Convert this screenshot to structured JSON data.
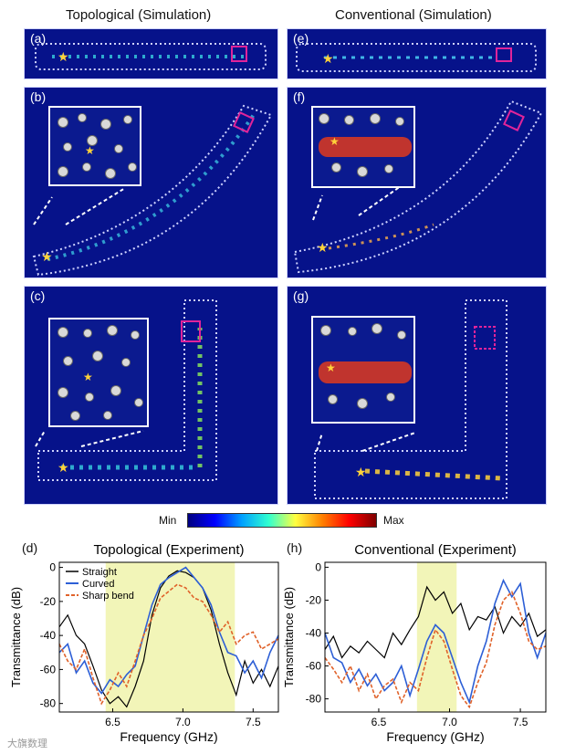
{
  "columns": {
    "left_title": "Topological (Simulation)",
    "right_title": "Conventional (Simulation)"
  },
  "panels": {
    "a": "(a)",
    "b": "(b)",
    "c": "(c)",
    "d": "(d)",
    "e": "(e)",
    "f": "(f)",
    "g": "(g)",
    "h": "(h)"
  },
  "colorbar": {
    "min_label": "Min",
    "max_label": "Max"
  },
  "watermark": "大旗数理",
  "colors": {
    "background_field": "#06128a",
    "lattice": "#cfd3ff",
    "marker_square": "#e0249a",
    "source_star": "#ffd23a",
    "shade": "#f2f5b8",
    "straight": "#000000",
    "curved": "#2d5fd6",
    "sharp": "#e0622a"
  },
  "chart_data": [
    {
      "type": "line",
      "title": "Topological (Experiment)",
      "xlabel": "Frequency (GHz)",
      "ylabel": "Transmittance (dB)",
      "xlim": [
        6.12,
        7.68
      ],
      "ylim": [
        -85,
        3
      ],
      "xticks": [
        6.5,
        7.0,
        7.5
      ],
      "yticks": [
        0,
        -20,
        -40,
        -60,
        -80
      ],
      "shade": [
        6.45,
        7.37
      ],
      "legend": [
        "Straight",
        "Curved",
        "Sharp bend"
      ],
      "series": [
        {
          "name": "Straight",
          "style": "solid",
          "color": "#000000",
          "x": [
            6.12,
            6.18,
            6.24,
            6.3,
            6.36,
            6.42,
            6.48,
            6.54,
            6.6,
            6.66,
            6.72,
            6.78,
            6.84,
            6.9,
            6.96,
            7.02,
            7.08,
            7.14,
            7.2,
            7.26,
            7.32,
            7.38,
            7.44,
            7.5,
            7.56,
            7.62,
            7.68
          ],
          "y": [
            -35,
            -28,
            -40,
            -45,
            -58,
            -72,
            -80,
            -76,
            -82,
            -70,
            -55,
            -28,
            -12,
            -5,
            -2,
            -3,
            -6,
            -12,
            -25,
            -45,
            -62,
            -75,
            -55,
            -68,
            -60,
            -70,
            -58
          ]
        },
        {
          "name": "Curved",
          "style": "solid",
          "color": "#2d5fd6",
          "x": [
            6.12,
            6.18,
            6.24,
            6.3,
            6.36,
            6.42,
            6.48,
            6.54,
            6.6,
            6.66,
            6.72,
            6.78,
            6.84,
            6.9,
            6.96,
            7.02,
            7.08,
            7.14,
            7.2,
            7.26,
            7.32,
            7.38,
            7.44,
            7.5,
            7.56,
            7.62,
            7.68
          ],
          "y": [
            -50,
            -45,
            -62,
            -55,
            -68,
            -74,
            -66,
            -70,
            -63,
            -58,
            -40,
            -22,
            -10,
            -6,
            -3,
            0,
            -6,
            -12,
            -22,
            -38,
            -50,
            -52,
            -62,
            -55,
            -65,
            -50,
            -40
          ]
        },
        {
          "name": "Sharp bend",
          "style": "dashed",
          "color": "#e0622a",
          "x": [
            6.12,
            6.18,
            6.24,
            6.3,
            6.36,
            6.42,
            6.48,
            6.54,
            6.6,
            6.66,
            6.72,
            6.78,
            6.84,
            6.9,
            6.96,
            7.02,
            7.08,
            7.14,
            7.2,
            7.26,
            7.32,
            7.38,
            7.44,
            7.5,
            7.56,
            7.62,
            7.68
          ],
          "y": [
            -45,
            -55,
            -60,
            -48,
            -65,
            -80,
            -72,
            -62,
            -70,
            -55,
            -40,
            -30,
            -18,
            -14,
            -10,
            -12,
            -18,
            -20,
            -28,
            -38,
            -32,
            -45,
            -40,
            -38,
            -48,
            -45,
            -42
          ]
        }
      ]
    },
    {
      "type": "line",
      "title": "Conventional (Experiment)",
      "xlabel": "Frequency (GHz)",
      "ylabel": "Transmittance (dB)",
      "xlim": [
        6.12,
        7.68
      ],
      "ylim": [
        -88,
        3
      ],
      "xticks": [
        6.5,
        7.0,
        7.5
      ],
      "yticks": [
        0,
        -20,
        -40,
        -60,
        -80
      ],
      "shade": [
        6.77,
        7.05
      ],
      "series": [
        {
          "name": "Straight",
          "style": "solid",
          "color": "#000000",
          "x": [
            6.12,
            6.18,
            6.24,
            6.3,
            6.36,
            6.42,
            6.48,
            6.54,
            6.6,
            6.66,
            6.72,
            6.78,
            6.84,
            6.9,
            6.96,
            7.02,
            7.08,
            7.14,
            7.2,
            7.26,
            7.32,
            7.38,
            7.44,
            7.5,
            7.56,
            7.62,
            7.68
          ],
          "y": [
            -50,
            -42,
            -55,
            -48,
            -52,
            -45,
            -50,
            -55,
            -40,
            -47,
            -38,
            -30,
            -12,
            -20,
            -15,
            -28,
            -22,
            -38,
            -30,
            -32,
            -24,
            -40,
            -30,
            -36,
            -28,
            -42,
            -38
          ]
        },
        {
          "name": "Curved",
          "style": "solid",
          "color": "#2d5fd6",
          "x": [
            6.12,
            6.18,
            6.24,
            6.3,
            6.36,
            6.42,
            6.48,
            6.54,
            6.6,
            6.66,
            6.72,
            6.78,
            6.84,
            6.9,
            6.96,
            7.02,
            7.08,
            7.14,
            7.2,
            7.26,
            7.32,
            7.38,
            7.44,
            7.5,
            7.56,
            7.62,
            7.68
          ],
          "y": [
            -40,
            -55,
            -58,
            -70,
            -62,
            -72,
            -65,
            -75,
            -70,
            -60,
            -78,
            -62,
            -45,
            -35,
            -40,
            -55,
            -70,
            -82,
            -60,
            -45,
            -22,
            -8,
            -18,
            -10,
            -40,
            -55,
            -40
          ]
        },
        {
          "name": "Sharp bend",
          "style": "dashed",
          "color": "#e0622a",
          "x": [
            6.12,
            6.18,
            6.24,
            6.3,
            6.36,
            6.42,
            6.48,
            6.54,
            6.6,
            6.66,
            6.72,
            6.78,
            6.84,
            6.9,
            6.96,
            7.02,
            7.08,
            7.14,
            7.2,
            7.26,
            7.32,
            7.38,
            7.44,
            7.5,
            7.56,
            7.62,
            7.68
          ],
          "y": [
            -55,
            -62,
            -70,
            -60,
            -75,
            -65,
            -80,
            -72,
            -68,
            -82,
            -70,
            -75,
            -55,
            -38,
            -45,
            -62,
            -78,
            -85,
            -70,
            -58,
            -35,
            -20,
            -15,
            -28,
            -45,
            -50,
            -48
          ]
        }
      ]
    }
  ]
}
